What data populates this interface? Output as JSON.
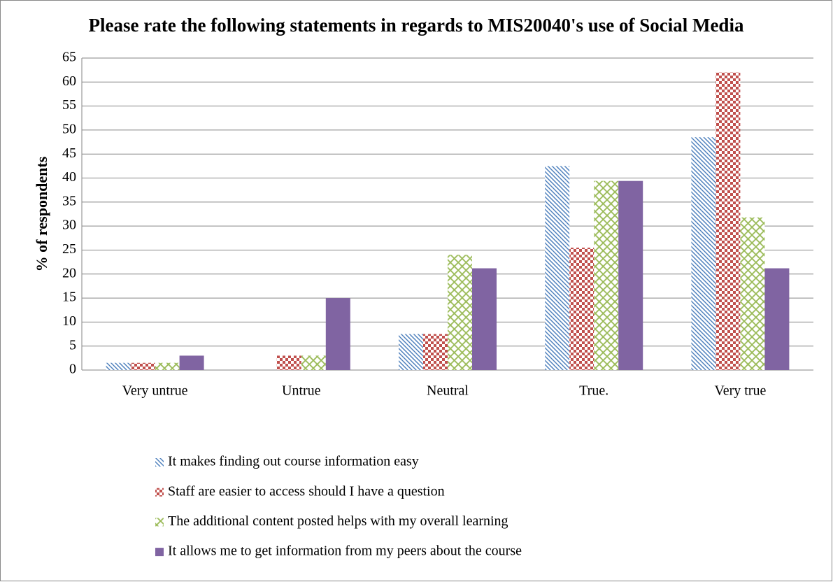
{
  "chart_data": {
    "type": "bar",
    "title": "Please rate the following statements in regards to MIS20040's use of Social Media",
    "y_label": "% of respondents",
    "categories": [
      "Very untrue",
      "Untrue",
      "Neutral",
      "True.",
      "Very true"
    ],
    "series": [
      {
        "name": "It makes finding out course information easy",
        "color": "#4f81bd",
        "pattern": "diagonal",
        "values": [
          1.5,
          0,
          7.5,
          42.5,
          48.5
        ]
      },
      {
        "name": "Staff are easier to access should I have a question",
        "color": "#c0504d",
        "pattern": "checker",
        "values": [
          1.5,
          3,
          7.5,
          25.5,
          62
        ]
      },
      {
        "name": "The additional content posted helps with my overall learning",
        "color": "#9bbb59",
        "pattern": "crosshatch",
        "values": [
          1.5,
          3,
          24,
          39.4,
          31.8
        ]
      },
      {
        "name": "It allows me to get information from my peers about the course",
        "color": "#8064a2",
        "pattern": "solid",
        "values": [
          3,
          15,
          21.2,
          39.4,
          21.2
        ]
      }
    ],
    "ylim": [
      0,
      65
    ],
    "yticks": [
      0,
      5,
      10,
      15,
      20,
      25,
      30,
      35,
      40,
      45,
      50,
      55,
      60,
      65
    ],
    "grid": true,
    "legend": "bottom"
  }
}
